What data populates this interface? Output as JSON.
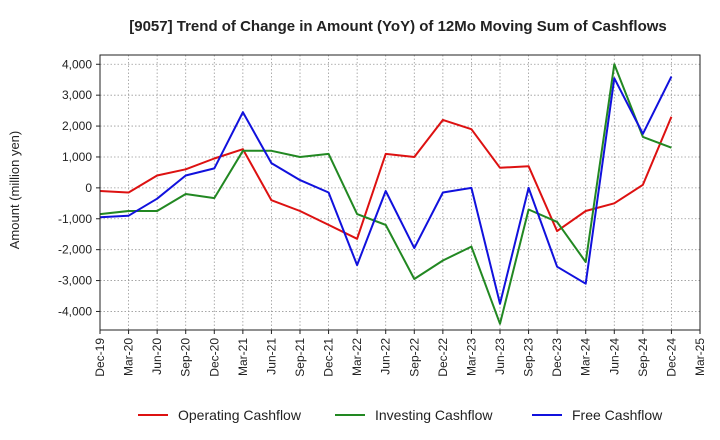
{
  "chart_data": {
    "type": "line",
    "title": "[9057]  Trend of Change in Amount (YoY) of 12Mo Moving Sum of Cashflows",
    "xlabel": "",
    "ylabel": "Amount (million yen)",
    "ylim": [
      -4600,
      4300
    ],
    "yticks": [
      4000,
      3000,
      2000,
      1000,
      0,
      -1000,
      -2000,
      -3000,
      -4000
    ],
    "ytick_labels": [
      "4,000",
      "3,000",
      "2,000",
      "1,000",
      "0",
      "-1,000",
      "-2,000",
      "-3,000",
      "-4,000"
    ],
    "categories": [
      "Dec-19",
      "Mar-20",
      "Jun-20",
      "Sep-20",
      "Dec-20",
      "Mar-21",
      "Jun-21",
      "Sep-21",
      "Dec-21",
      "Mar-22",
      "Jun-22",
      "Sep-22",
      "Dec-22",
      "Mar-23",
      "Jun-23",
      "Sep-23",
      "Dec-23",
      "Mar-24",
      "Jun-24",
      "Sep-24",
      "Dec-24",
      "Mar-25"
    ],
    "series": [
      {
        "name": "Operating Cashflow",
        "color": "#dd1111",
        "values": [
          -100,
          -150,
          400,
          600,
          950,
          1250,
          -400,
          -750,
          -1200,
          -1650,
          1100,
          1000,
          2200,
          1900,
          650,
          700,
          -1400,
          -750,
          -500,
          100,
          2300,
          null
        ]
      },
      {
        "name": "Investing Cashflow",
        "color": "#228822",
        "values": [
          -850,
          -750,
          -750,
          -200,
          -330,
          1200,
          1200,
          1000,
          1100,
          -850,
          -1200,
          -2950,
          -2350,
          -1900,
          -4400,
          -700,
          -1100,
          -2400,
          4000,
          1650,
          1300,
          null
        ]
      },
      {
        "name": "Free Cashflow",
        "color": "#1111dd",
        "values": [
          -950,
          -900,
          -350,
          400,
          630,
          2450,
          800,
          250,
          -150,
          -2500,
          -100,
          -1950,
          -150,
          0,
          -3750,
          0,
          -2550,
          -3100,
          3550,
          1750,
          3600,
          null
        ]
      }
    ],
    "legend": {
      "position": "bottom",
      "entries": [
        "Operating Cashflow",
        "Investing Cashflow",
        "Free Cashflow"
      ]
    },
    "grid": true
  }
}
